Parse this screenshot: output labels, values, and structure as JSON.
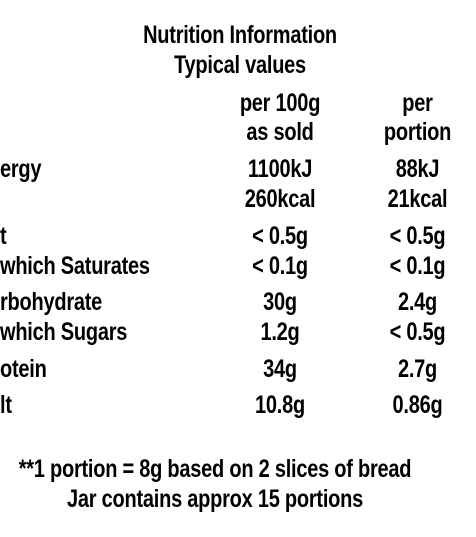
{
  "header": {
    "title": "Nutrition Information",
    "subtitle": "Typical values"
  },
  "columns": {
    "col1_line1": "per 100g",
    "col1_line2": "as sold",
    "col2_line1": "per",
    "col2_line2": "portion"
  },
  "rows": [
    {
      "label": "ergy",
      "v1": "1100kJ",
      "v2": "88kJ"
    },
    {
      "label": "",
      "v1": "260kcal",
      "v2": "21kcal"
    },
    {
      "label": "t",
      "v1": "< 0.5g",
      "v2": "< 0.5g"
    },
    {
      "label": "which Saturates",
      "v1": "< 0.1g",
      "v2": "< 0.1g"
    },
    {
      "label": "rbohydrate",
      "v1": "30g",
      "v2": "2.4g"
    },
    {
      "label": "which Sugars",
      "v1": "1.2g",
      "v2": "< 0.5g"
    },
    {
      "label": "otein",
      "v1": "34g",
      "v2": "2.7g"
    },
    {
      "label": "lt",
      "v1": "10.8g",
      "v2": "0.86g"
    }
  ],
  "footer": {
    "line1": "**1 portion = 8g based on 2 slices of bread",
    "line2": "Jar contains approx 15 portions"
  }
}
